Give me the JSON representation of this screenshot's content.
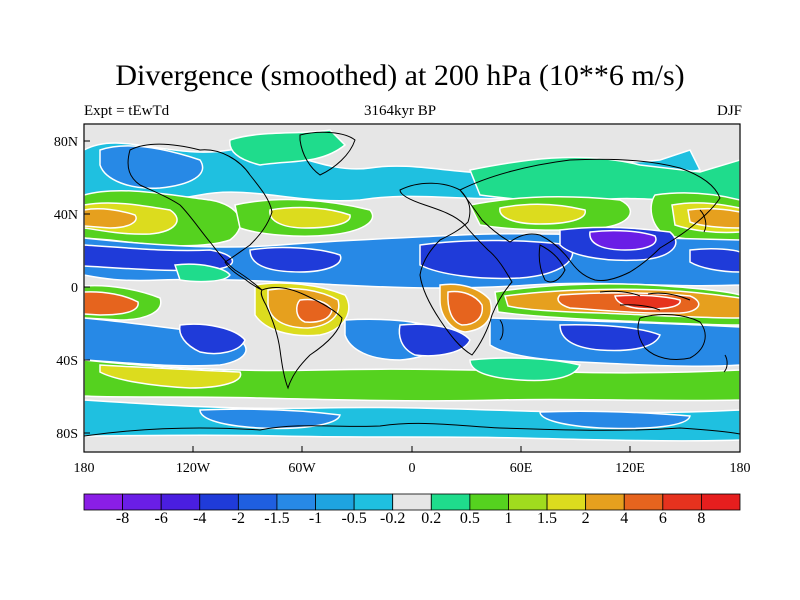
{
  "figure": {
    "title": "Divergence (smoothed) at 200 hPa (10**6 m/s)",
    "left_string": "Expt = tEwTd",
    "center_string": "3164kyr BP",
    "right_string": "DJF"
  },
  "axes": {
    "lat_ticks": [
      "80N",
      "40N",
      "0",
      "40S",
      "80S"
    ],
    "lon_ticks": [
      "180",
      "120W",
      "60W",
      "0",
      "60E",
      "120E",
      "180"
    ]
  },
  "colorbar": {
    "labels": [
      "-8",
      "-6",
      "-4",
      "-2",
      "-1.5",
      "-1",
      "-0.5",
      "-0.2",
      "0.2",
      "0.5",
      "1",
      "1.5",
      "2",
      "4",
      "6",
      "8"
    ],
    "colors": [
      "#8a1ee6",
      "#6a1ee6",
      "#4a1ee0",
      "#1f3bd9",
      "#1f5fe0",
      "#2789e6",
      "#1ea4e0",
      "#1fc0e0",
      "#e6e6e6",
      "#1fdc8c",
      "#55d21f",
      "#a0dc1e",
      "#dcdc1e",
      "#e6a01e",
      "#e6641e",
      "#e6321e",
      "#e61e1e"
    ]
  },
  "fields": {
    "colors": {
      "neutral": "#e6e6e6",
      "vstrong_neg": "#6a1ee6",
      "strong_neg": "#1f3bd9",
      "mod_neg": "#2789e6",
      "weak_neg": "#1fc0e0",
      "weak_pos": "#1fdc8c",
      "mod_pos": "#55d21f",
      "pos": "#a0dc1e",
      "strong_pos": "#dcdc1e",
      "vstrong_pos": "#e6a01e",
      "max_pos": "#e6641e",
      "extreme_pos": "#e6321e"
    }
  }
}
